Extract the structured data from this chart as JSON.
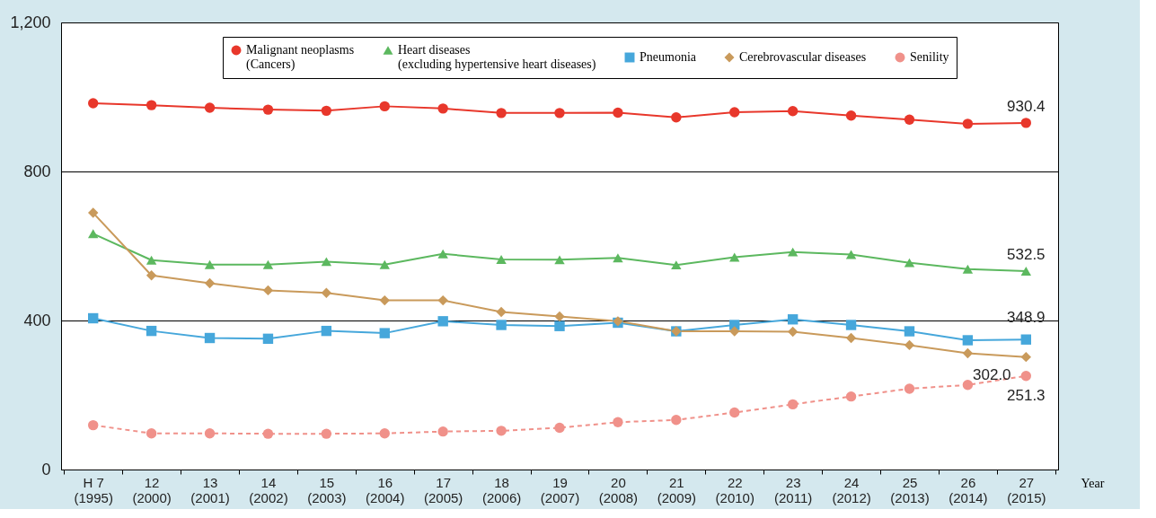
{
  "chart_data": {
    "type": "line",
    "categories": [
      "H 7 (1995)",
      "12 (2000)",
      "13 (2001)",
      "14 (2002)",
      "15 (2003)",
      "16 (2004)",
      "17 (2005)",
      "18 (2006)",
      "19 (2007)",
      "20 (2008)",
      "21 (2009)",
      "22 (2010)",
      "23 (2011)",
      "24 (2012)",
      "25 (2013)",
      "26 (2014)",
      "27 (2015)"
    ],
    "xlabel": "Year",
    "ylim": [
      0,
      1200
    ],
    "yticks": [
      0,
      400,
      800,
      {
        "value": 1200,
        "label": "1,200"
      }
    ],
    "grid": "y",
    "legend": "top",
    "series": [
      {
        "name": "Malignant neoplasms (Cancers)",
        "color": "#e8372b",
        "marker": "circle",
        "line_style": "solid",
        "values": [
          983,
          978,
          971,
          966,
          963,
          975,
          969,
          957,
          957,
          958,
          945,
          959,
          962,
          950,
          939,
          928,
          930.4
        ],
        "value_labels": [
          null,
          null,
          null,
          null,
          null,
          null,
          null,
          null,
          null,
          null,
          null,
          null,
          null,
          null,
          null,
          null,
          "930.4"
        ]
      },
      {
        "name": "Heart diseases (excluding hypertensive heart diseases)",
        "color": "#5cb85f",
        "marker": "triangle",
        "line_style": "solid",
        "values": [
          633,
          562,
          550,
          550,
          558,
          550,
          579,
          564,
          563,
          568,
          549,
          570,
          584,
          577,
          555,
          538,
          532.5
        ],
        "value_labels": [
          null,
          null,
          null,
          null,
          null,
          null,
          null,
          null,
          null,
          null,
          null,
          null,
          null,
          null,
          null,
          null,
          "532.5"
        ]
      },
      {
        "name": "Pneumonia",
        "color": "#46a7db",
        "marker": "square",
        "line_style": "solid",
        "values": [
          406,
          372,
          353,
          351,
          372,
          366,
          398,
          388,
          385,
          394,
          371,
          388,
          403,
          388,
          371,
          347,
          348.9
        ],
        "value_labels": [
          null,
          null,
          null,
          null,
          null,
          null,
          null,
          null,
          null,
          null,
          null,
          null,
          null,
          null,
          null,
          null,
          "348.9"
        ]
      },
      {
        "name": "Cerebrovascular diseases",
        "color": "#c99a5b",
        "marker": "diamond",
        "line_style": "solid",
        "values": [
          689,
          521,
          500,
          481,
          474,
          454,
          454,
          423,
          411,
          398,
          371,
          371,
          370,
          353,
          334,
          312,
          302.0
        ],
        "value_labels": [
          null,
          null,
          null,
          null,
          null,
          null,
          null,
          null,
          null,
          null,
          null,
          null,
          null,
          null,
          null,
          null,
          "302.0"
        ]
      },
      {
        "name": "Senility",
        "color": "#f0918a",
        "marker": "circle",
        "line_style": "dashed",
        "values": [
          119,
          97,
          97,
          96,
          96,
          97,
          102,
          104,
          112,
          127,
          133,
          153,
          175,
          196,
          217,
          227,
          251.3
        ],
        "value_labels": [
          null,
          null,
          null,
          null,
          null,
          null,
          null,
          null,
          null,
          null,
          null,
          null,
          null,
          null,
          null,
          null,
          "251.3"
        ]
      }
    ]
  }
}
